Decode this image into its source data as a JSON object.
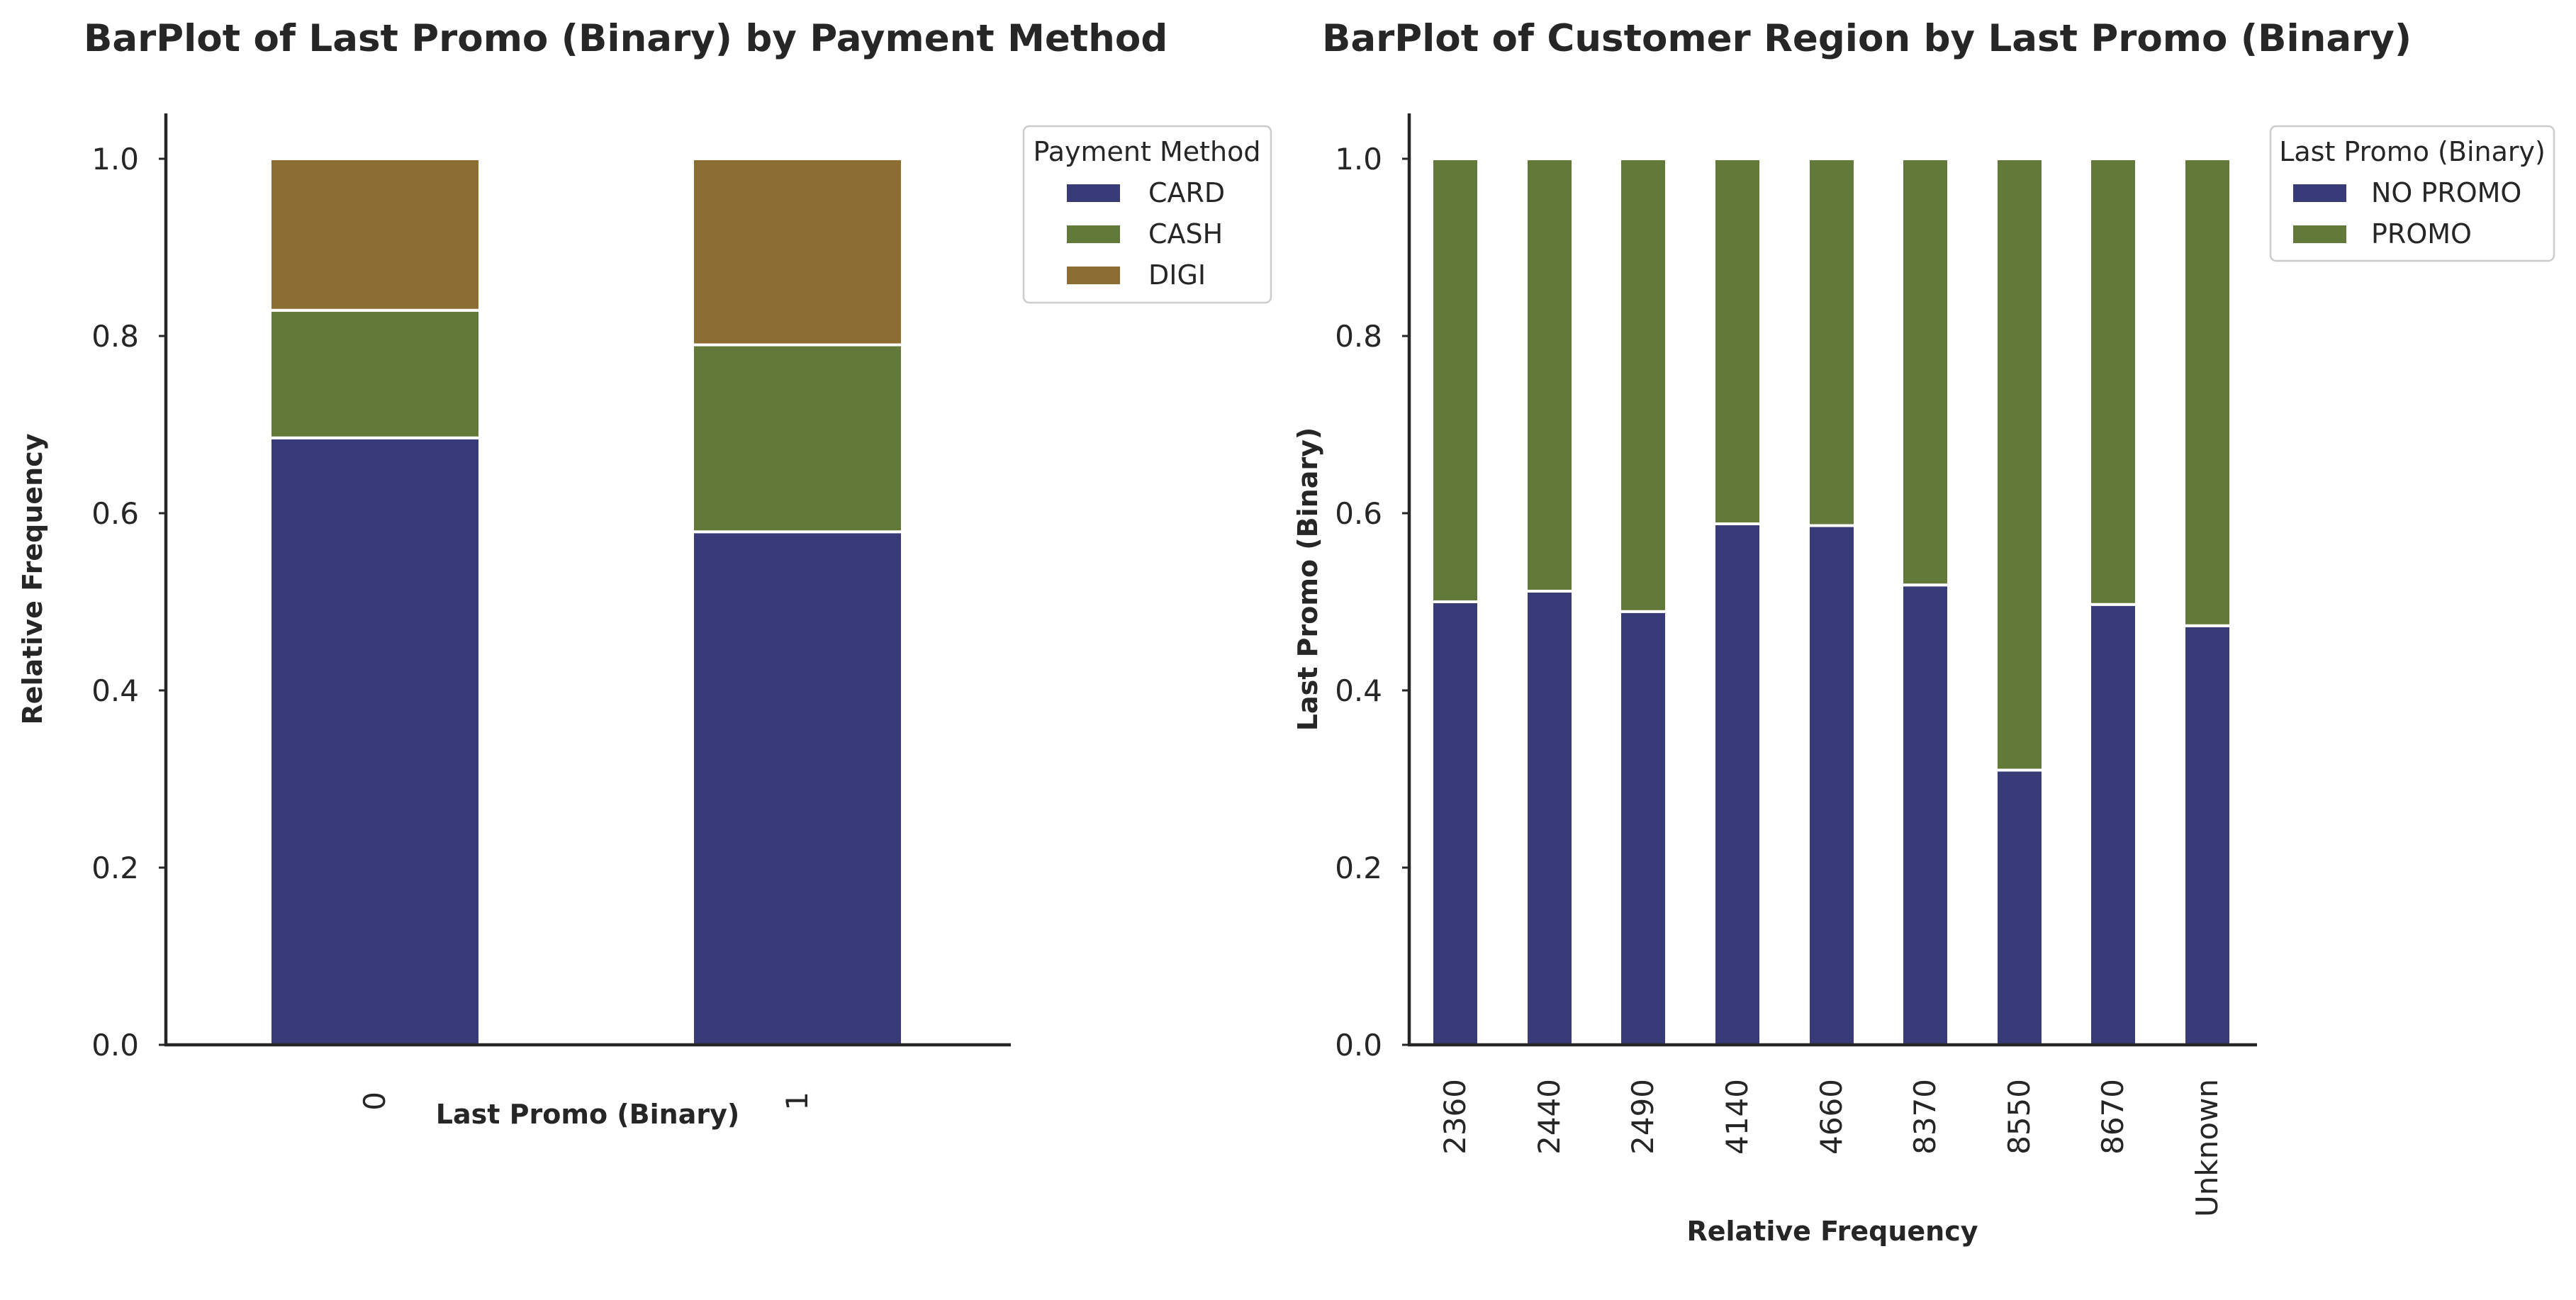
{
  "chart_data": [
    {
      "type": "bar",
      "stacked": true,
      "title": "BarPlot of Last Promo (Binary) by Payment Method",
      "xlabel": "Last Promo (Binary)",
      "ylabel": "Relative Frequency",
      "categories": [
        "0",
        "1"
      ],
      "series": [
        {
          "name": "CARD",
          "values": [
            0.685,
            0.579
          ],
          "color": "#393b79"
        },
        {
          "name": "CASH",
          "values": [
            0.144,
            0.211
          ],
          "color": "#637939"
        },
        {
          "name": "DIGI",
          "values": [
            0.171,
            0.21
          ],
          "color": "#8c6d31"
        }
      ],
      "ylim": [
        0,
        1.05
      ],
      "yticks": [
        "0.0",
        "0.2",
        "0.4",
        "0.6",
        "0.8",
        "1.0"
      ],
      "legend_title": "Payment Method",
      "legend_position": "outside upper right",
      "grid": false
    },
    {
      "type": "bar",
      "stacked": true,
      "title": "BarPlot of Customer Region by Last Promo (Binary)",
      "xlabel": "Relative Frequency",
      "ylabel": "Last Promo (Binary)",
      "categories": [
        "2360",
        "2440",
        "2490",
        "4140",
        "4660",
        "8370",
        "8550",
        "8670",
        "Unknown"
      ],
      "series": [
        {
          "name": "NO PROMO",
          "values": [
            0.5,
            0.512,
            0.489,
            0.588,
            0.586,
            0.519,
            0.31,
            0.497,
            0.473
          ],
          "color": "#393b79"
        },
        {
          "name": "PROMO",
          "values": [
            0.5,
            0.488,
            0.511,
            0.412,
            0.414,
            0.481,
            0.69,
            0.503,
            0.527
          ],
          "color": "#637939"
        }
      ],
      "ylim": [
        0,
        1.05
      ],
      "yticks": [
        "0.0",
        "0.2",
        "0.4",
        "0.6",
        "0.8",
        "1.0"
      ],
      "legend_title": "Last Promo (Binary)",
      "legend_position": "outside upper right",
      "grid": false
    }
  ]
}
